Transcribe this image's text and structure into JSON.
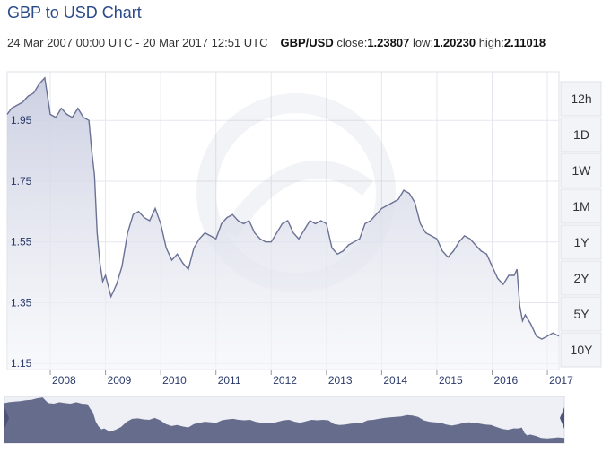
{
  "title": "GBP to USD Chart",
  "meta": {
    "date_range": "24 Mar 2007 00:00 UTC - 20 Mar 2017 12:51 UTC",
    "pair": "GBP/USD",
    "close_label": "close:",
    "close_value": "1.23807",
    "low_label": "low:",
    "low_value": "1.20230",
    "high_label": "high:",
    "high_value": "2.11018"
  },
  "range_buttons": [
    "12h",
    "1D",
    "1W",
    "1M",
    "1Y",
    "2Y",
    "5Y",
    "10Y"
  ],
  "colors": {
    "line": "#6a7195",
    "fill": "#dcdfeb",
    "grid": "#e6e7ee",
    "title": "#2b4a8a",
    "navigator": "#565d80"
  },
  "chart_data": {
    "type": "area",
    "title": "",
    "xlabel": "",
    "ylabel": "",
    "ylim": [
      1.13,
      2.11
    ],
    "xlim": [
      2007.22,
      2017.21
    ],
    "y_ticks": [
      "1.95",
      "1.75",
      "1.55",
      "1.35",
      "1.15"
    ],
    "x_ticks": [
      "2008",
      "2009",
      "2010",
      "2011",
      "2012",
      "2013",
      "2014",
      "2015",
      "2016",
      "2017"
    ],
    "grid": true,
    "series": [
      {
        "x": [
          2007.22,
          2007.3,
          2007.4,
          2007.5,
          2007.6,
          2007.7,
          2007.8,
          2007.9,
          2008.0,
          2008.1,
          2008.2,
          2008.3,
          2008.4,
          2008.5,
          2008.6,
          2008.7,
          2008.75,
          2008.8,
          2008.85,
          2008.9,
          2008.95,
          2009.0,
          2009.1,
          2009.2,
          2009.3,
          2009.4,
          2009.5,
          2009.6,
          2009.7,
          2009.8,
          2009.9,
          2010.0,
          2010.1,
          2010.2,
          2010.3,
          2010.4,
          2010.5,
          2010.6,
          2010.7,
          2010.8,
          2010.9,
          2011.0,
          2011.1,
          2011.2,
          2011.3,
          2011.4,
          2011.5,
          2011.6,
          2011.7,
          2011.8,
          2011.9,
          2012.0,
          2012.1,
          2012.2,
          2012.3,
          2012.4,
          2012.5,
          2012.6,
          2012.7,
          2012.8,
          2012.9,
          2013.0,
          2013.1,
          2013.2,
          2013.3,
          2013.4,
          2013.5,
          2013.6,
          2013.7,
          2013.8,
          2013.9,
          2014.0,
          2014.1,
          2014.2,
          2014.3,
          2014.4,
          2014.5,
          2014.6,
          2014.7,
          2014.8,
          2014.9,
          2015.0,
          2015.1,
          2015.2,
          2015.3,
          2015.4,
          2015.5,
          2015.6,
          2015.7,
          2015.8,
          2015.9,
          2016.0,
          2016.1,
          2016.2,
          2016.3,
          2016.4,
          2016.45,
          2016.5,
          2016.55,
          2016.6,
          2016.7,
          2016.8,
          2016.9,
          2017.0,
          2017.1,
          2017.21
        ],
        "y": [
          1.97,
          1.99,
          2.0,
          2.01,
          2.03,
          2.04,
          2.07,
          2.09,
          1.97,
          1.96,
          1.99,
          1.97,
          1.96,
          1.99,
          1.96,
          1.95,
          1.85,
          1.77,
          1.58,
          1.48,
          1.42,
          1.44,
          1.37,
          1.41,
          1.47,
          1.58,
          1.64,
          1.65,
          1.63,
          1.62,
          1.66,
          1.61,
          1.53,
          1.49,
          1.51,
          1.48,
          1.46,
          1.53,
          1.56,
          1.58,
          1.57,
          1.56,
          1.61,
          1.63,
          1.64,
          1.62,
          1.61,
          1.62,
          1.58,
          1.56,
          1.55,
          1.55,
          1.58,
          1.61,
          1.62,
          1.58,
          1.56,
          1.59,
          1.62,
          1.61,
          1.62,
          1.61,
          1.53,
          1.51,
          1.52,
          1.54,
          1.55,
          1.56,
          1.61,
          1.62,
          1.64,
          1.66,
          1.67,
          1.68,
          1.69,
          1.72,
          1.71,
          1.68,
          1.61,
          1.58,
          1.57,
          1.56,
          1.52,
          1.5,
          1.52,
          1.55,
          1.57,
          1.56,
          1.54,
          1.52,
          1.51,
          1.47,
          1.43,
          1.41,
          1.44,
          1.44,
          1.46,
          1.34,
          1.29,
          1.31,
          1.28,
          1.24,
          1.23,
          1.24,
          1.25,
          1.24
        ]
      }
    ]
  }
}
